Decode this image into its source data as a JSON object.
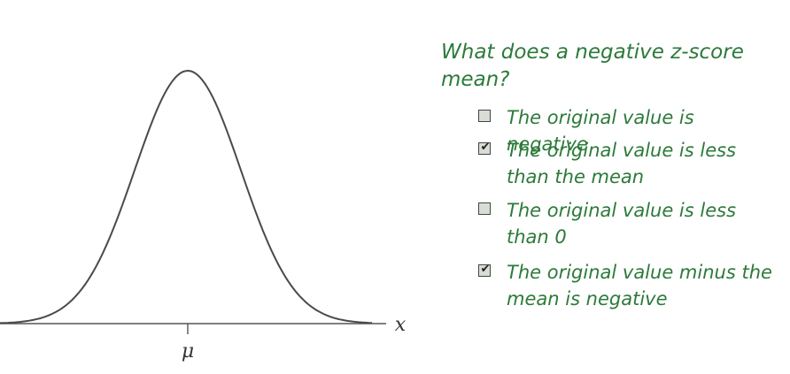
{
  "diagram": {
    "axis_variable": "x",
    "center_label": "μ",
    "curve_color": "#4a4a4a",
    "axis_color": "#555555"
  },
  "question": {
    "text": "What does a negative z-score mean?",
    "color": "#2c7a3a",
    "options": [
      {
        "label": "The original value is negative",
        "checked": false
      },
      {
        "label": "The original value is less than the mean",
        "checked": true
      },
      {
        "label": "The original value is less than 0",
        "checked": false
      },
      {
        "label": "The original value minus the mean is negative",
        "checked": true
      }
    ]
  }
}
